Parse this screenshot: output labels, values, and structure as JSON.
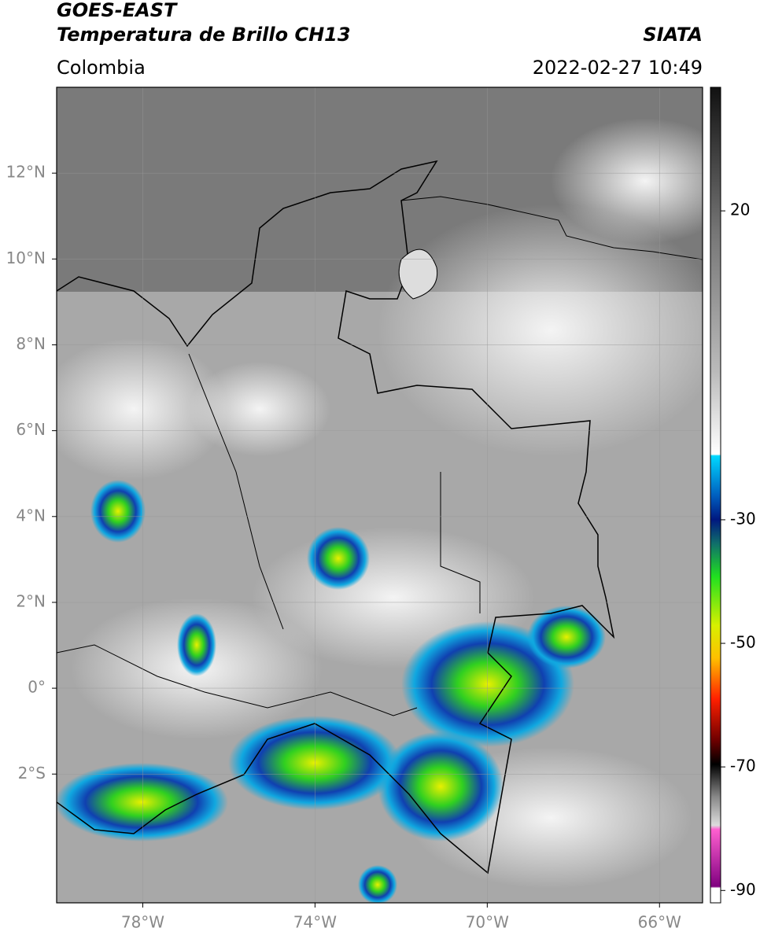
{
  "header": {
    "title": "GOES-EAST",
    "subtitle": "Temperatura de Brillo CH13",
    "region": "Colombia",
    "source": "SIATA",
    "datetime": "2022-02-27 10:49"
  },
  "map": {
    "lonlim": [
      -80,
      -65
    ],
    "latlim": [
      -5,
      14
    ],
    "lonticks": [
      {
        "value": -78,
        "label": "78°W"
      },
      {
        "value": -74,
        "label": "74°W"
      },
      {
        "value": -70,
        "label": "70°W"
      },
      {
        "value": -66,
        "label": "66°W"
      }
    ],
    "latticks": [
      {
        "value": 12,
        "label": "12°N"
      },
      {
        "value": 10,
        "label": "10°N"
      },
      {
        "value": 8,
        "label": "8°N"
      },
      {
        "value": 6,
        "label": "6°N"
      },
      {
        "value": 4,
        "label": "4°N"
      },
      {
        "value": 2,
        "label": "2°N"
      },
      {
        "value": 0,
        "label": "0°"
      },
      {
        "value": -2,
        "label": "2°S"
      }
    ],
    "grid": true
  },
  "colorbar": {
    "lim": [
      -92,
      40
    ],
    "ticks": [
      20,
      -30,
      -50,
      -70,
      -90
    ]
  }
}
